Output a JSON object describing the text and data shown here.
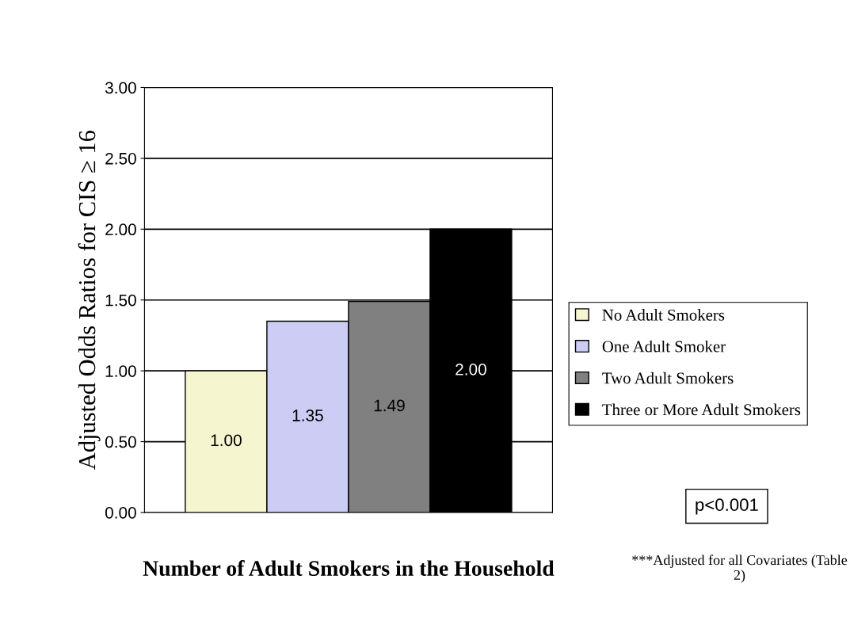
{
  "chart_data": {
    "type": "bar",
    "xlabel": "Number of Adult Smokers in the Household",
    "ylabel": "Adjusted Odds Ratios for CIS ≥ 16",
    "categories": [
      null
    ],
    "series": [
      {
        "name": "No Adult Smokers",
        "color": "#f5f5d0",
        "values": [
          1.0
        ],
        "value_labels": [
          "1.00"
        ]
      },
      {
        "name": "One Adult Smoker",
        "color": "#ccccf5",
        "values": [
          1.35
        ],
        "value_labels": [
          "1.35"
        ]
      },
      {
        "name": "Two Adult Smokers",
        "color": "#808080",
        "values": [
          1.49
        ],
        "value_labels": [
          "1.49"
        ]
      },
      {
        "name": "Three or More Adult Smokers",
        "color": "#000000",
        "values": [
          2.0
        ],
        "value_labels": [
          "2.00"
        ]
      }
    ],
    "ylim": [
      0,
      3
    ],
    "yticks": [
      {
        "value": 0,
        "label": "0.00"
      },
      {
        "value": 0.5,
        "label": "0.50"
      },
      {
        "value": 1,
        "label": "1.00"
      },
      {
        "value": 1.5,
        "label": "1.50"
      },
      {
        "value": 2,
        "label": "2.00"
      },
      {
        "value": 2.5,
        "label": "2.50"
      },
      {
        "value": 3,
        "label": "3.00"
      }
    ],
    "grid": "y",
    "legend": "right",
    "annotations": [
      "p<0.001",
      "***Adjusted for all Covariates (Table 2)"
    ]
  }
}
